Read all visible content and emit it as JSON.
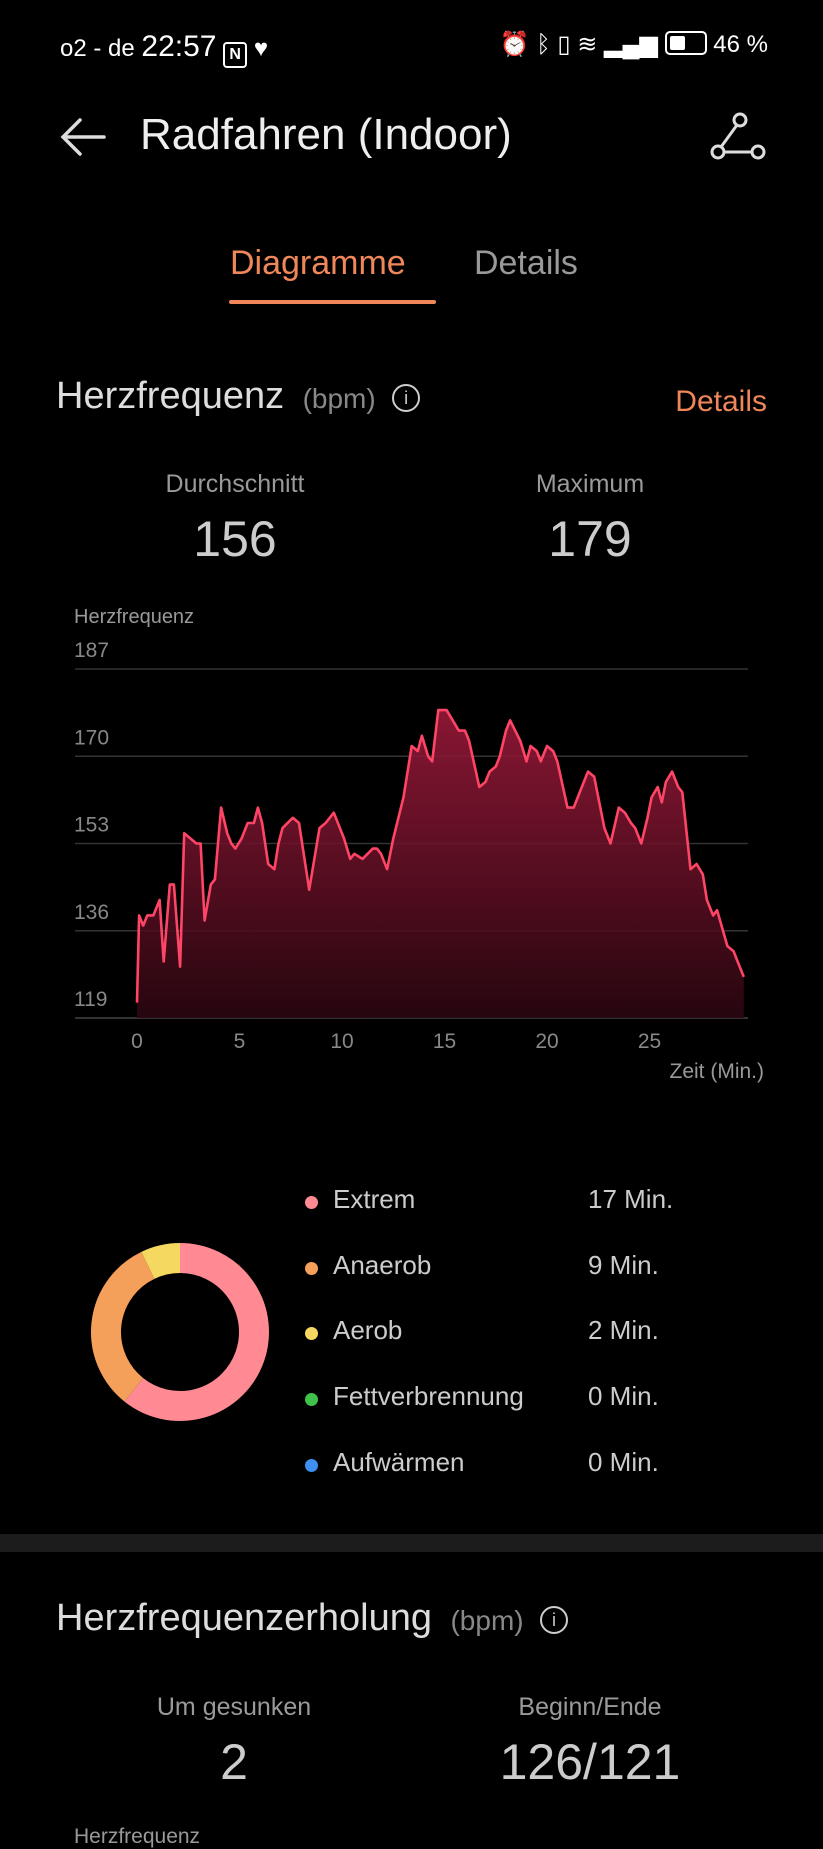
{
  "status_bar": {
    "carrier": "o2 - de",
    "time": "22:57",
    "battery": "46 %",
    "icons": [
      "nfc-icon",
      "heart-app-icon",
      "alarm-icon",
      "bluetooth-icon",
      "vibrate-icon",
      "wifi-icon",
      "signal-icon",
      "battery-icon"
    ]
  },
  "header": {
    "title": "Radfahren (Indoor)",
    "back_icon": "arrow-left-icon",
    "share_icon": "route-share-icon"
  },
  "tabs": [
    {
      "label": "Diagramme",
      "active": true
    },
    {
      "label": "Details",
      "active": false
    }
  ],
  "colors": {
    "accent": "#f0875a",
    "line": "#ff4566",
    "extreme": "#ff8a93",
    "anaerob": "#f5a05a",
    "aerob": "#f5d860",
    "fett": "#3ec24a",
    "warm": "#3f8ff0"
  },
  "heart_rate": {
    "title": "Herzfrequenz",
    "unit": "(bpm)",
    "details_link": "Details",
    "avg_label": "Durchschnitt",
    "avg_value": "156",
    "max_label": "Maximum",
    "max_value": "179"
  },
  "chart_data": {
    "type": "area",
    "ylabel": "Herzfrequenz",
    "xlabel": "Zeit (Min.)",
    "yticks": [
      187,
      170,
      153,
      136,
      119
    ],
    "xticks": [
      0,
      5,
      10,
      15,
      20,
      25
    ],
    "ylim": [
      119,
      187
    ],
    "xlim": [
      0,
      29.6
    ],
    "grid": true,
    "x": [
      0,
      0.1,
      0.3,
      0.5,
      0.8,
      1.1,
      1.3,
      1.6,
      1.8,
      2.1,
      2.3,
      2.9,
      3.1,
      3.3,
      3.6,
      3.8,
      4.1,
      4.4,
      4.6,
      4.8,
      5.1,
      5.4,
      5.7,
      5.9,
      6.1,
      6.4,
      6.7,
      6.9,
      7.1,
      7.6,
      7.9,
      8.4,
      8.9,
      9.2,
      9.6,
      10.1,
      10.4,
      10.6,
      11.0,
      11.5,
      11.7,
      11.9,
      12.2,
      12.5,
      13.0,
      13.4,
      13.7,
      13.9,
      14.2,
      14.4,
      14.7,
      15.1,
      15.7,
      16.0,
      16.2,
      16.7,
      17.0,
      17.2,
      17.5,
      17.7,
      18.0,
      18.2,
      18.7,
      19.0,
      19.2,
      19.5,
      19.7,
      20.0,
      20.3,
      20.5,
      21.0,
      21.3,
      21.7,
      22.0,
      22.3,
      22.8,
      23.1,
      23.5,
      23.8,
      24.1,
      24.3,
      24.6,
      24.9,
      25.1,
      25.4,
      25.6,
      25.8,
      26.1,
      26.4,
      26.6,
      27.0,
      27.3,
      27.6,
      27.8,
      28.1,
      28.3,
      28.8,
      29.1,
      29.3,
      29.6
    ],
    "y": [
      122,
      139,
      137,
      139,
      139,
      142,
      130,
      145,
      145,
      129,
      155,
      153,
      153,
      138,
      145,
      146,
      160,
      155,
      153,
      152,
      154,
      157,
      157,
      160,
      157,
      149,
      148,
      153,
      156,
      158,
      157,
      144,
      156,
      157,
      159,
      154,
      150,
      151,
      150,
      152,
      152,
      151,
      148,
      154,
      162,
      172,
      171,
      174,
      170,
      169,
      179,
      179,
      175,
      175,
      173,
      164,
      165,
      167,
      168,
      170,
      175,
      177,
      173,
      169,
      172,
      171,
      169,
      172,
      171,
      169,
      160,
      160,
      164,
      167,
      166,
      156,
      153,
      160,
      159,
      157,
      156,
      153,
      158,
      162,
      164,
      161,
      165,
      167,
      164,
      163,
      148,
      149,
      147,
      142,
      139,
      140,
      133,
      132,
      130,
      127
    ]
  },
  "zones": [
    {
      "name": "Extrem",
      "value": "17 Min.",
      "minutes": 17,
      "color": "#ff8a93"
    },
    {
      "name": "Anaerob",
      "value": "9 Min.",
      "minutes": 9,
      "color": "#f5a05a"
    },
    {
      "name": "Aerob",
      "value": "2 Min.",
      "minutes": 2,
      "color": "#f5d860"
    },
    {
      "name": "Fettverbrennung",
      "value": "0 Min.",
      "minutes": 0,
      "color": "#3ec24a"
    },
    {
      "name": "Aufwärmen",
      "value": "0 Min.",
      "minutes": 0,
      "color": "#3f8ff0"
    }
  ],
  "recovery": {
    "title": "Herzfrequenzerholung",
    "unit": "(bpm)",
    "drop_label": "Um  gesunken",
    "drop_value": "2",
    "range_label": "Beginn/Ende",
    "range_value": "126/121",
    "chart_label": "Herzfrequenz"
  }
}
